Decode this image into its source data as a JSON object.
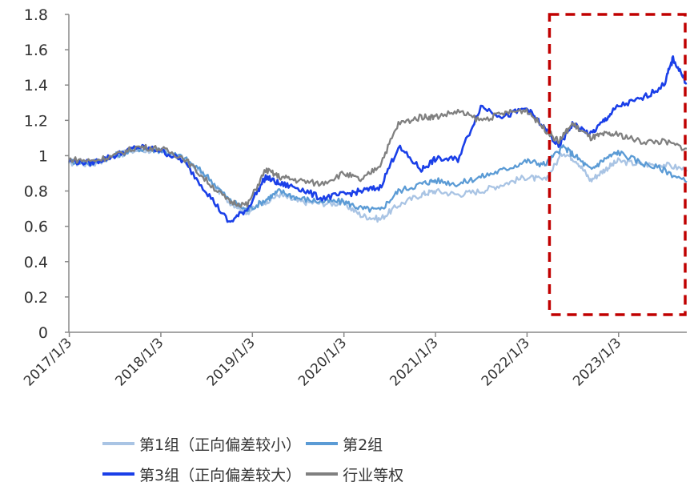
{
  "chart_data": {
    "type": "line",
    "title": "",
    "xlabel": "",
    "ylabel": "",
    "x_ticks": [
      "2017/1/3",
      "2018/1/3",
      "2019/1/3",
      "2020/1/3",
      "2021/1/3",
      "2022/1/3",
      "2023/1/3"
    ],
    "y_ticks": [
      "0",
      "0.2",
      "0.4",
      "0.6",
      "0.8",
      "1",
      "1.2",
      "1.4",
      "1.6",
      "1.8"
    ],
    "ylim": [
      0,
      1.8
    ],
    "xlim": [
      2017.0,
      2023.75
    ],
    "grid": false,
    "legend_position": "bottom",
    "highlight_box": {
      "x_from": 2022.25,
      "x_to": 2023.75,
      "y_from": 0.1,
      "y_to": 1.8,
      "color": "#C00000"
    },
    "series": [
      {
        "name": "第1组（正向偏差较小）",
        "color": "#A9C4E4",
        "points": [
          [
            2017.0,
            0.96
          ],
          [
            2017.25,
            0.95
          ],
          [
            2017.5,
            1.0
          ],
          [
            2017.75,
            1.03
          ],
          [
            2018.0,
            1.03
          ],
          [
            2018.25,
            0.98
          ],
          [
            2018.5,
            0.88
          ],
          [
            2018.75,
            0.74
          ],
          [
            2018.95,
            0.68
          ],
          [
            2019.15,
            0.74
          ],
          [
            2019.3,
            0.78
          ],
          [
            2019.5,
            0.74
          ],
          [
            2019.75,
            0.73
          ],
          [
            2020.0,
            0.73
          ],
          [
            2020.2,
            0.66
          ],
          [
            2020.4,
            0.64
          ],
          [
            2020.6,
            0.72
          ],
          [
            2020.85,
            0.78
          ],
          [
            2021.0,
            0.8
          ],
          [
            2021.25,
            0.78
          ],
          [
            2021.5,
            0.8
          ],
          [
            2021.75,
            0.84
          ],
          [
            2022.0,
            0.88
          ],
          [
            2022.2,
            0.86
          ],
          [
            2022.4,
            1.02
          ],
          [
            2022.55,
            0.97
          ],
          [
            2022.7,
            0.86
          ],
          [
            2022.85,
            0.92
          ],
          [
            2023.0,
            0.97
          ],
          [
            2023.25,
            0.95
          ],
          [
            2023.5,
            0.95
          ],
          [
            2023.75,
            0.92
          ]
        ]
      },
      {
        "name": "第2组",
        "color": "#5B9BD5",
        "points": [
          [
            2017.0,
            0.97
          ],
          [
            2017.25,
            0.96
          ],
          [
            2017.5,
            1.0
          ],
          [
            2017.75,
            1.04
          ],
          [
            2018.0,
            1.03
          ],
          [
            2018.25,
            0.99
          ],
          [
            2018.5,
            0.89
          ],
          [
            2018.75,
            0.75
          ],
          [
            2018.95,
            0.69
          ],
          [
            2019.15,
            0.75
          ],
          [
            2019.3,
            0.8
          ],
          [
            2019.5,
            0.76
          ],
          [
            2019.75,
            0.74
          ],
          [
            2020.0,
            0.74
          ],
          [
            2020.2,
            0.7
          ],
          [
            2020.4,
            0.69
          ],
          [
            2020.6,
            0.8
          ],
          [
            2020.85,
            0.84
          ],
          [
            2021.0,
            0.86
          ],
          [
            2021.25,
            0.84
          ],
          [
            2021.5,
            0.88
          ],
          [
            2021.75,
            0.92
          ],
          [
            2022.0,
            0.97
          ],
          [
            2022.2,
            0.95
          ],
          [
            2022.4,
            1.05
          ],
          [
            2022.55,
            0.99
          ],
          [
            2022.7,
            0.92
          ],
          [
            2022.85,
            0.98
          ],
          [
            2023.0,
            1.02
          ],
          [
            2023.25,
            0.96
          ],
          [
            2023.5,
            0.92
          ],
          [
            2023.75,
            0.85
          ]
        ]
      },
      {
        "name": "第3组（正向偏差较大）",
        "color": "#1A3FE8",
        "points": [
          [
            2017.0,
            0.97
          ],
          [
            2017.25,
            0.96
          ],
          [
            2017.5,
            1.0
          ],
          [
            2017.75,
            1.05
          ],
          [
            2018.0,
            1.03
          ],
          [
            2018.25,
            0.97
          ],
          [
            2018.5,
            0.8
          ],
          [
            2018.75,
            0.62
          ],
          [
            2018.95,
            0.7
          ],
          [
            2019.15,
            0.88
          ],
          [
            2019.3,
            0.84
          ],
          [
            2019.5,
            0.82
          ],
          [
            2019.75,
            0.76
          ],
          [
            2020.0,
            0.78
          ],
          [
            2020.2,
            0.8
          ],
          [
            2020.4,
            0.82
          ],
          [
            2020.6,
            1.05
          ],
          [
            2020.85,
            0.92
          ],
          [
            2021.0,
            0.98
          ],
          [
            2021.25,
            0.98
          ],
          [
            2021.5,
            1.28
          ],
          [
            2021.75,
            1.22
          ],
          [
            2022.0,
            1.27
          ],
          [
            2022.2,
            1.15
          ],
          [
            2022.35,
            1.05
          ],
          [
            2022.5,
            1.18
          ],
          [
            2022.7,
            1.12
          ],
          [
            2022.85,
            1.2
          ],
          [
            2023.0,
            1.28
          ],
          [
            2023.25,
            1.32
          ],
          [
            2023.5,
            1.4
          ],
          [
            2023.6,
            1.55
          ],
          [
            2023.75,
            1.41
          ]
        ]
      },
      {
        "name": "行业等权",
        "color": "#808080",
        "points": [
          [
            2017.0,
            0.98
          ],
          [
            2017.25,
            0.97
          ],
          [
            2017.5,
            1.0
          ],
          [
            2017.75,
            1.05
          ],
          [
            2018.0,
            1.04
          ],
          [
            2018.25,
            0.99
          ],
          [
            2018.5,
            0.86
          ],
          [
            2018.75,
            0.74
          ],
          [
            2018.95,
            0.72
          ],
          [
            2019.15,
            0.92
          ],
          [
            2019.3,
            0.88
          ],
          [
            2019.5,
            0.86
          ],
          [
            2019.75,
            0.84
          ],
          [
            2020.0,
            0.9
          ],
          [
            2020.2,
            0.86
          ],
          [
            2020.4,
            0.95
          ],
          [
            2020.6,
            1.18
          ],
          [
            2020.85,
            1.22
          ],
          [
            2021.0,
            1.22
          ],
          [
            2021.25,
            1.25
          ],
          [
            2021.5,
            1.2
          ],
          [
            2021.75,
            1.24
          ],
          [
            2022.0,
            1.26
          ],
          [
            2022.2,
            1.15
          ],
          [
            2022.35,
            1.08
          ],
          [
            2022.5,
            1.18
          ],
          [
            2022.7,
            1.1
          ],
          [
            2022.85,
            1.12
          ],
          [
            2023.0,
            1.12
          ],
          [
            2023.25,
            1.08
          ],
          [
            2023.5,
            1.08
          ],
          [
            2023.75,
            1.04
          ]
        ]
      }
    ]
  }
}
